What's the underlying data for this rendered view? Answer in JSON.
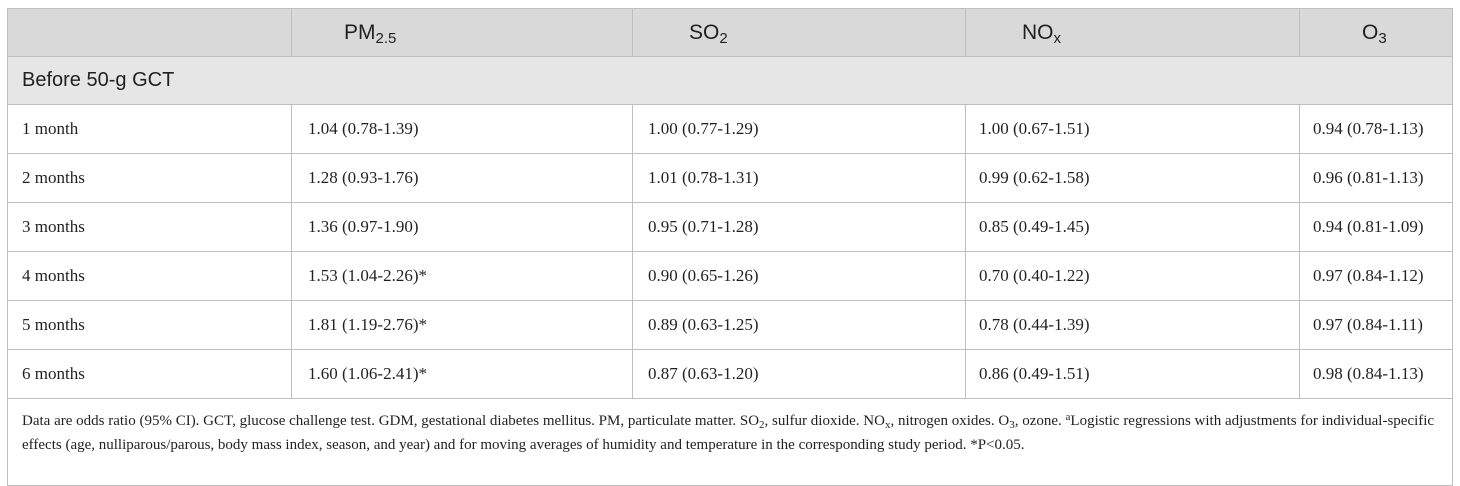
{
  "table": {
    "headers": [
      {
        "base": "",
        "sub": ""
      },
      {
        "base": "PM",
        "sub": "2.5"
      },
      {
        "base": "SO",
        "sub": "2"
      },
      {
        "base": "NO",
        "sub": "x"
      },
      {
        "base": "O",
        "sub": "3"
      }
    ],
    "section_title": "Before 50-g GCT",
    "rows": [
      {
        "label": "1 month",
        "values": [
          "1.04 (0.78-1.39)",
          "1.00 (0.77-1.29)",
          "1.00 (0.67-1.51)",
          "0.94 (0.78-1.13)"
        ]
      },
      {
        "label": "2 months",
        "values": [
          "1.28 (0.93-1.76)",
          "1.01 (0.78-1.31)",
          "0.99 (0.62-1.58)",
          "0.96 (0.81-1.13)"
        ]
      },
      {
        "label": "3 months",
        "values": [
          "1.36 (0.97-1.90)",
          "0.95 (0.71-1.28)",
          "0.85 (0.49-1.45)",
          "0.94 (0.81-1.09)"
        ]
      },
      {
        "label": "4 months",
        "values": [
          "1.53 (1.04-2.26)*",
          "0.90 (0.65-1.26)",
          "0.70 (0.40-1.22)",
          "0.97 (0.84-1.12)"
        ]
      },
      {
        "label": "5 months",
        "values": [
          "1.81 (1.19-2.76)*",
          "0.89 (0.63-1.25)",
          "0.78 (0.44-1.39)",
          "0.97 (0.84-1.11)"
        ]
      },
      {
        "label": "6 months",
        "values": [
          "1.60 (1.06-2.41)*",
          "0.87 (0.63-1.20)",
          "0.86 (0.49-1.51)",
          "0.98 (0.84-1.13)"
        ]
      }
    ],
    "footnote": {
      "part1": "Data are odds ratio (95% CI). GCT, glucose challenge test. GDM, gestational diabetes mellitus. PM, particulate matter. SO",
      "sub1": "2",
      "part2": ", sulfur dioxide. NO",
      "sub2": "x",
      "part3": ", nitrogen oxides. O",
      "sub3": "3",
      "part4": ", ozone. ",
      "sup1": "a",
      "part5": "Logistic regressions with adjustments for individual-specific effects (age, nulliparous/parous, body mass index, season, and year) and for moving averages of humidity and temperature in the corresponding study period. *P<0.05."
    }
  },
  "colors": {
    "header_bg": "#d9d9d9",
    "section_bg": "#e6e6e6",
    "border": "#bfbfbf",
    "text": "#231f20"
  }
}
